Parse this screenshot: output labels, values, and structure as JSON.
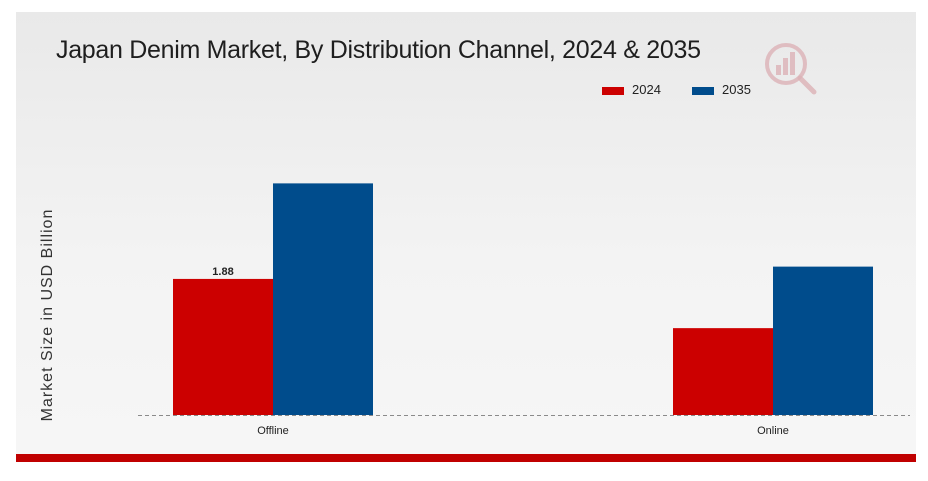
{
  "chart_data": {
    "type": "bar",
    "title": "Japan Denim Market, By Distribution Channel, 2024 & 2035",
    "xlabel": "",
    "ylabel": "Market Size in USD Billion",
    "categories": [
      "Offline",
      "Online"
    ],
    "series": [
      {
        "name": "2024",
        "color": "#cc0000",
        "values": [
          1.88,
          1.2
        ]
      },
      {
        "name": "2035",
        "color": "#004c8c",
        "values": [
          3.2,
          2.05
        ]
      }
    ],
    "data_labels": [
      {
        "series": 0,
        "category": 0,
        "text": "1.88"
      }
    ],
    "ylim": [
      0,
      4.2
    ],
    "grid": false,
    "legend_position": "top-right",
    "baseline_style": "dashed"
  },
  "logo": {
    "icon": "bar-chart-magnifier-icon",
    "color": "#d9a3a8"
  },
  "colors": {
    "accent_bar": "#c00000"
  }
}
